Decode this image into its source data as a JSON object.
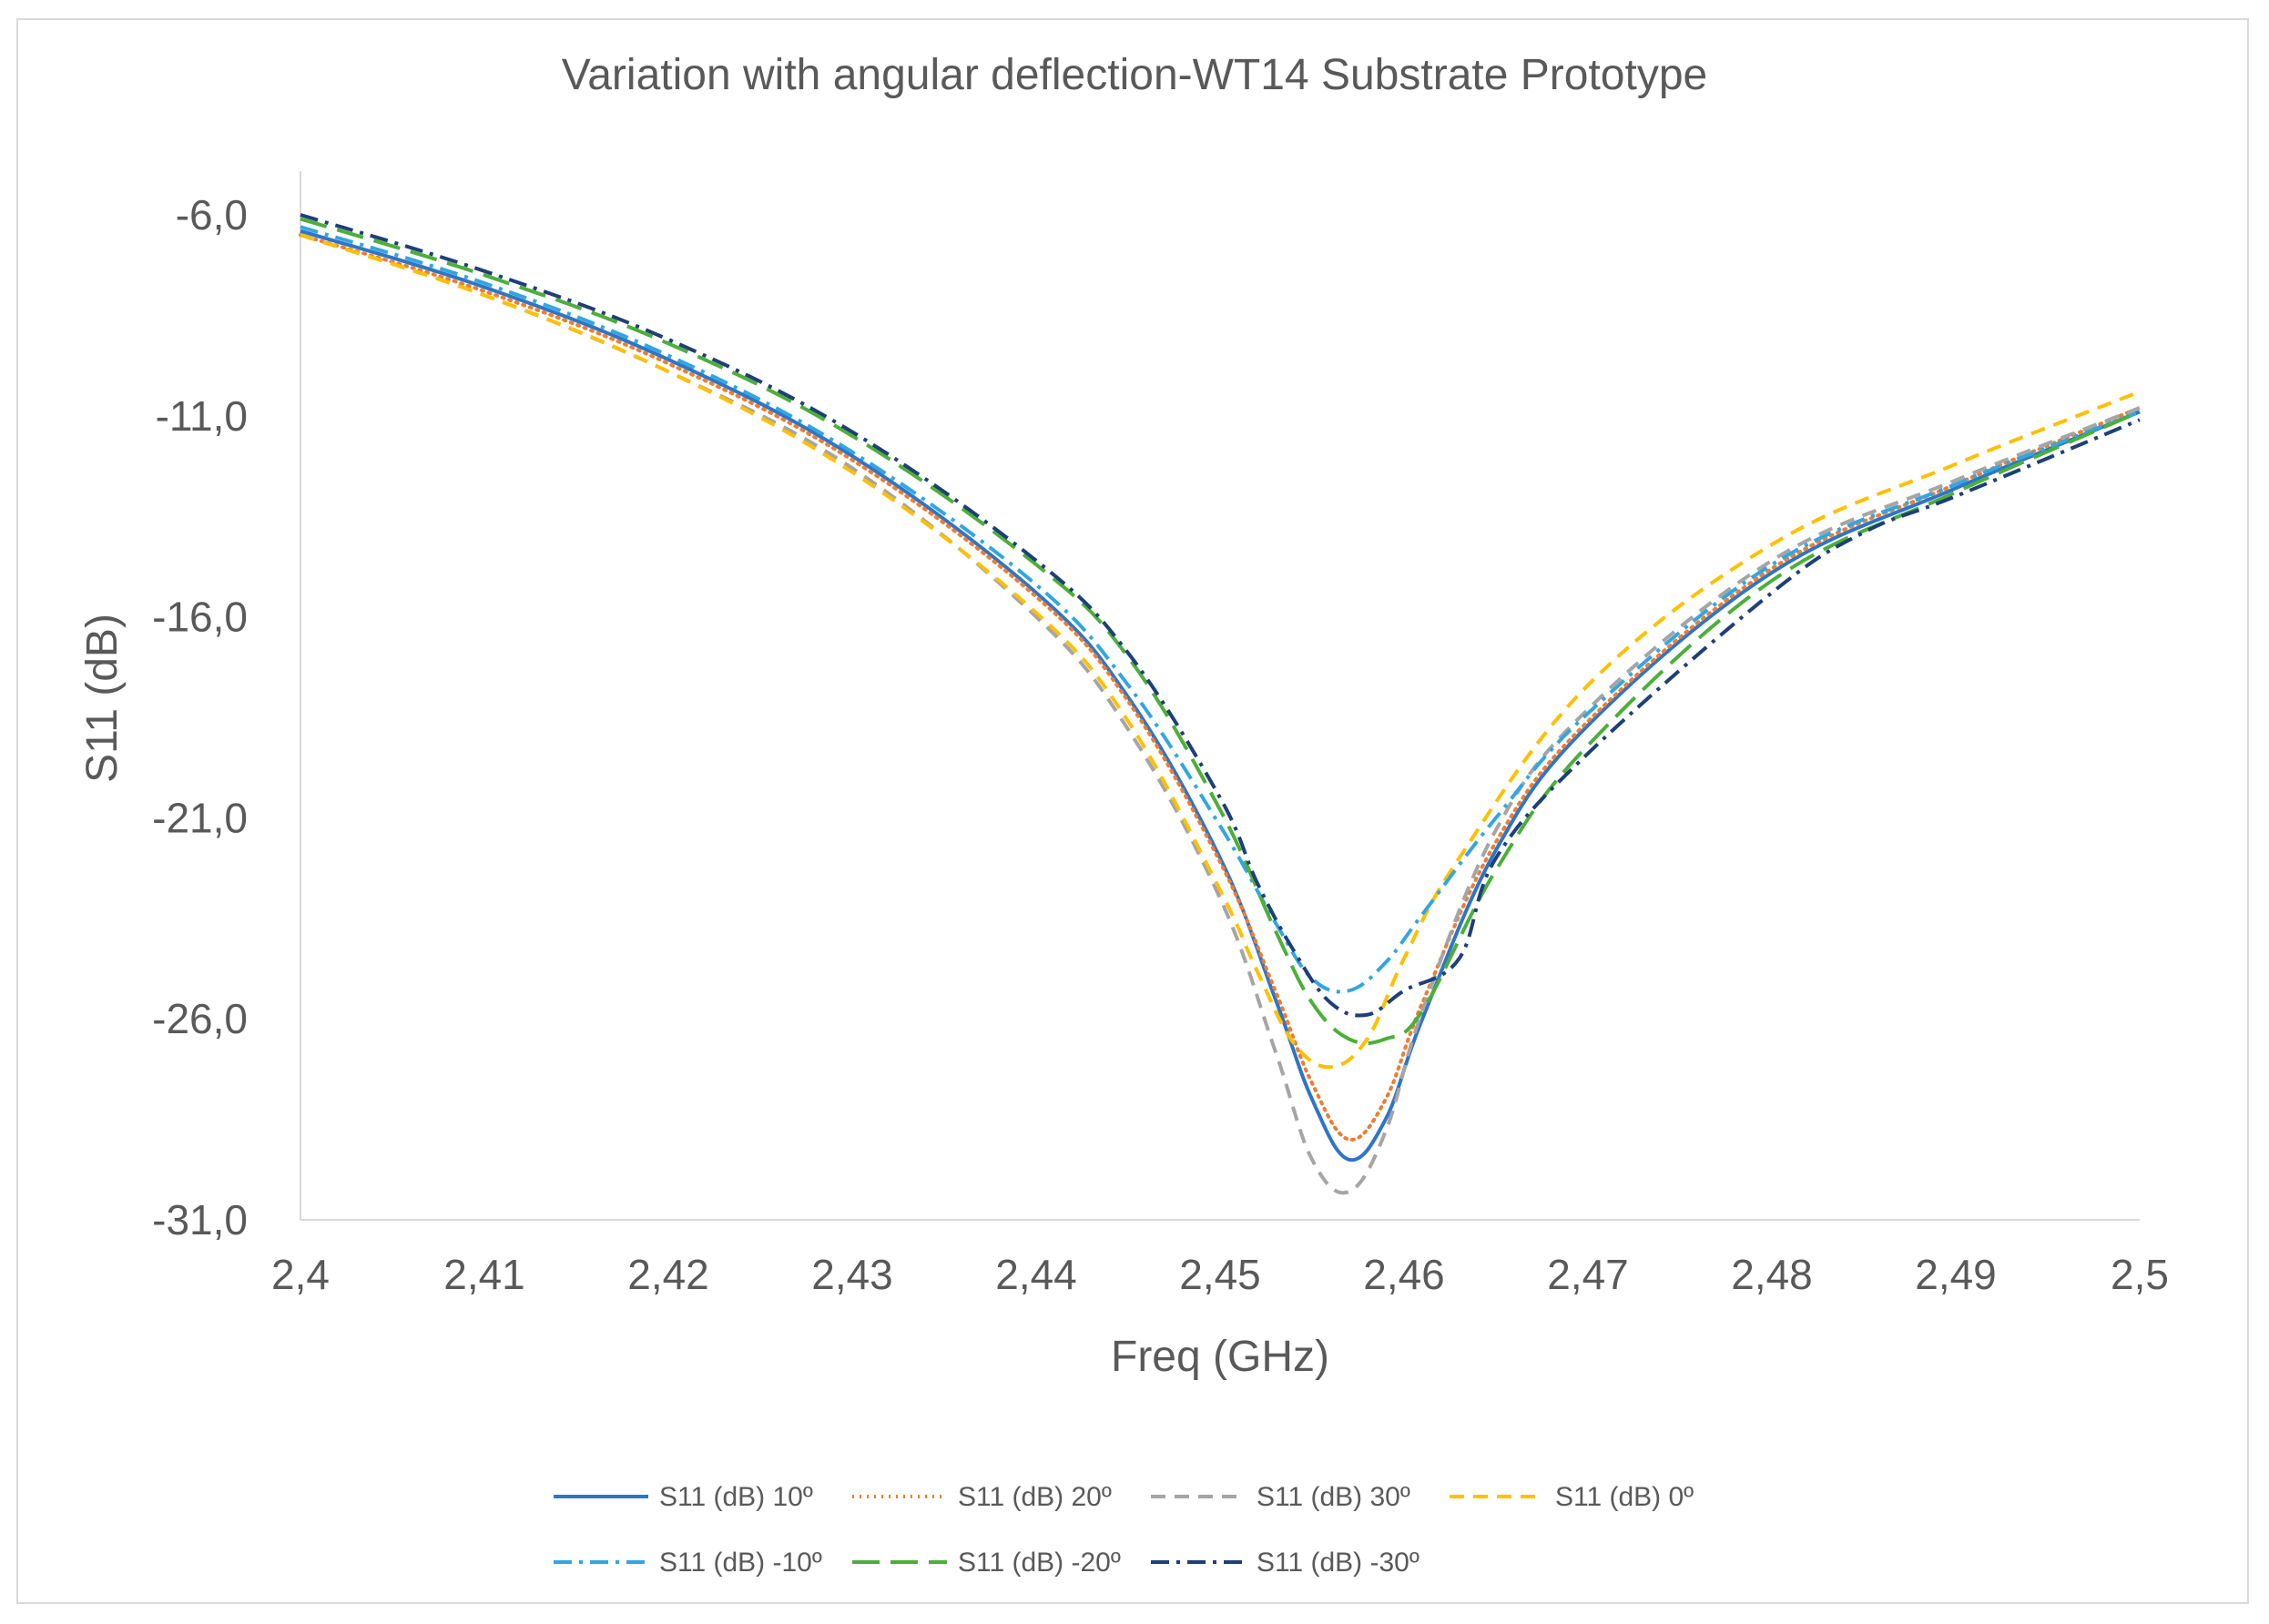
{
  "chart_data": {
    "type": "line",
    "title": "Variation with angular deflection-WT14 Substrate Prototype",
    "xlabel": "Freq (GHz)",
    "ylabel": "S11 (dB)",
    "xlim": [
      2.4,
      2.5
    ],
    "ylim": [
      -31,
      -5
    ],
    "x_ticks": [
      2.4,
      2.41,
      2.42,
      2.43,
      2.44,
      2.45,
      2.46,
      2.47,
      2.48,
      2.49,
      2.5
    ],
    "x_tick_labels": [
      "2,4",
      "2,41",
      "2,42",
      "2,43",
      "2,44",
      "2,45",
      "2,46",
      "2,47",
      "2,48",
      "2,49",
      "2,5"
    ],
    "y_ticks": [
      -6,
      -11,
      -16,
      -21,
      -26,
      -31
    ],
    "y_tick_labels": [
      "-6,0",
      "-11,0",
      "-16,0",
      "-21,0",
      "-26,0",
      "-31,0"
    ],
    "legend_position": "bottom",
    "series": [
      {
        "name": "S11 (dB) 10º",
        "color": "#2e75c8",
        "dash": "solid",
        "x": [
          2.4,
          2.41,
          2.42,
          2.43,
          2.44,
          2.445,
          2.45,
          2.453,
          2.455,
          2.457,
          2.459,
          2.461,
          2.465,
          2.47,
          2.48,
          2.49,
          2.5
        ],
        "y": [
          -6.4,
          -7.8,
          -9.6,
          -12.0,
          -15.4,
          -18.0,
          -22.0,
          -25.5,
          -28.0,
          -29.5,
          -28.5,
          -26.0,
          -21.8,
          -18.7,
          -14.9,
          -12.8,
          -10.9
        ]
      },
      {
        "name": "S11 (dB) 20º",
        "color": "#ed7d31",
        "dash": "dotted",
        "x": [
          2.4,
          2.41,
          2.42,
          2.43,
          2.44,
          2.445,
          2.45,
          2.453,
          2.455,
          2.457,
          2.459,
          2.461,
          2.465,
          2.47,
          2.48,
          2.49,
          2.5
        ],
        "y": [
          -6.5,
          -7.9,
          -9.7,
          -12.1,
          -15.5,
          -18.1,
          -22.1,
          -25.3,
          -27.6,
          -29.0,
          -28.0,
          -25.6,
          -21.6,
          -18.6,
          -14.8,
          -12.7,
          -10.8
        ]
      },
      {
        "name": "S11 (dB) 30º",
        "color": "#a5a5a5",
        "dash": "dash",
        "x": [
          2.4,
          2.41,
          2.42,
          2.43,
          2.44,
          2.445,
          2.45,
          2.453,
          2.455,
          2.457,
          2.459,
          2.461,
          2.465,
          2.47,
          2.48,
          2.49,
          2.5
        ],
        "y": [
          -6.5,
          -8.0,
          -9.9,
          -12.3,
          -16.0,
          -18.8,
          -23.0,
          -26.8,
          -29.5,
          -30.3,
          -28.8,
          -25.8,
          -21.3,
          -18.3,
          -14.6,
          -12.6,
          -10.8
        ]
      },
      {
        "name": "S11 (dB) 0º",
        "color": "#ffc000",
        "dash": "dash",
        "x": [
          2.4,
          2.41,
          2.42,
          2.43,
          2.44,
          2.445,
          2.45,
          2.452,
          2.454,
          2.456,
          2.458,
          2.46,
          2.463,
          2.47,
          2.48,
          2.49,
          2.5
        ],
        "y": [
          -6.5,
          -8.0,
          -9.9,
          -12.4,
          -15.9,
          -18.6,
          -22.8,
          -24.8,
          -26.6,
          -27.2,
          -26.5,
          -24.5,
          -22.0,
          -17.7,
          -14.2,
          -12.2,
          -10.4
        ]
      },
      {
        "name": "S11 (dB) -10º",
        "color": "#33a6e0",
        "dash": "dashdot",
        "x": [
          2.4,
          2.41,
          2.42,
          2.43,
          2.44,
          2.445,
          2.45,
          2.453,
          2.455,
          2.457,
          2.459,
          2.461,
          2.465,
          2.47,
          2.48,
          2.49,
          2.5
        ],
        "y": [
          -6.3,
          -7.7,
          -9.5,
          -11.9,
          -15.2,
          -17.7,
          -21.2,
          -23.6,
          -25.0,
          -25.3,
          -24.6,
          -23.4,
          -21.0,
          -18.4,
          -14.7,
          -12.7,
          -10.9
        ]
      },
      {
        "name": "S11 (dB) -20º",
        "color": "#4caf3a",
        "dash": "longdash",
        "x": [
          2.4,
          2.41,
          2.42,
          2.43,
          2.44,
          2.445,
          2.45,
          2.453,
          2.455,
          2.457,
          2.459,
          2.461,
          2.465,
          2.47,
          2.48,
          2.49,
          2.5
        ],
        "y": [
          -6.1,
          -7.5,
          -9.2,
          -11.5,
          -14.7,
          -17.0,
          -20.8,
          -23.8,
          -25.6,
          -26.5,
          -26.5,
          -25.8,
          -22.3,
          -19.2,
          -15.1,
          -12.9,
          -10.9
        ]
      },
      {
        "name": "S11 (dB) -30º",
        "color": "#1f3f77",
        "dash": "dashdot",
        "x": [
          2.4,
          2.41,
          2.42,
          2.43,
          2.44,
          2.445,
          2.45,
          2.452,
          2.454,
          2.456,
          2.458,
          2.46,
          2.463,
          2.465,
          2.47,
          2.48,
          2.485,
          2.49,
          2.5
        ],
        "y": [
          -6.0,
          -7.4,
          -9.1,
          -11.4,
          -14.6,
          -16.9,
          -20.5,
          -22.6,
          -24.3,
          -25.6,
          -25.9,
          -25.3,
          -24.5,
          -22.0,
          -19.4,
          -15.4,
          -13.9,
          -13.0,
          -11.1
        ]
      }
    ]
  }
}
